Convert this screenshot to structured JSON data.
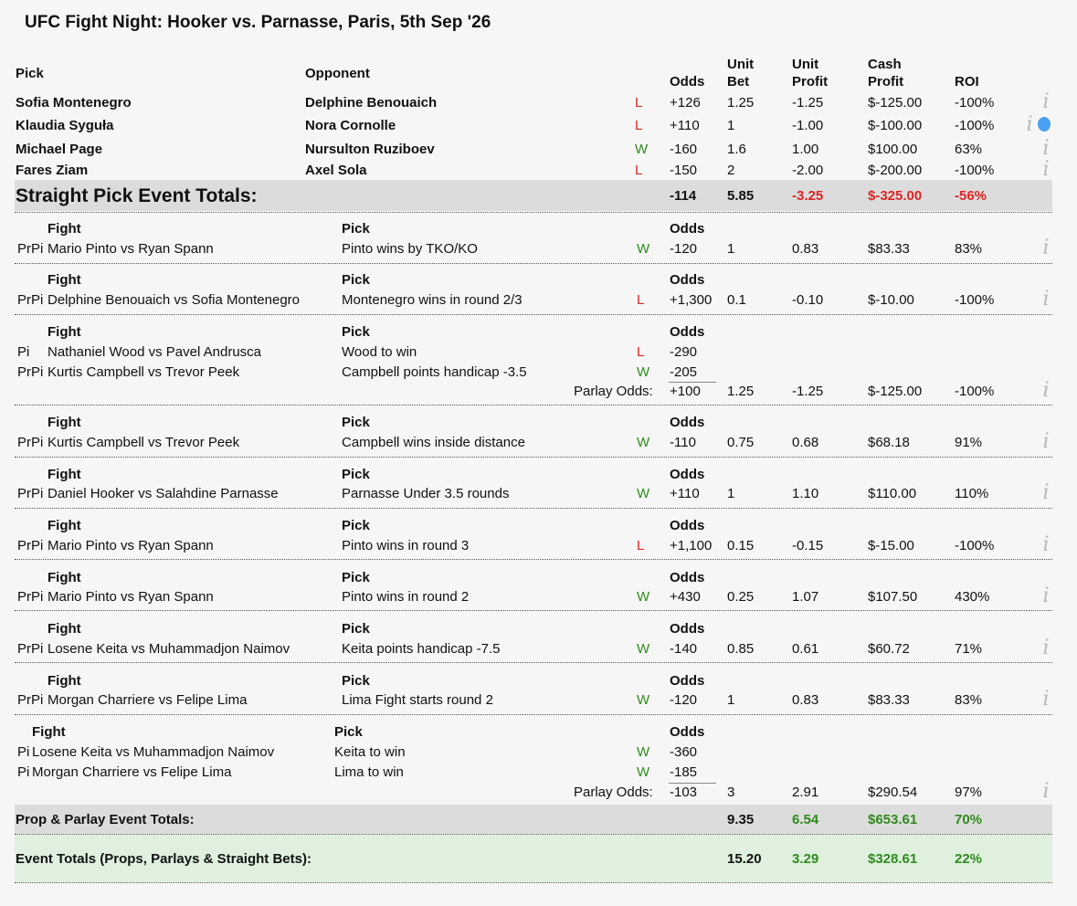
{
  "title": "UFC Fight Night: Hooker vs. Parnasse, Paris, 5th Sep '26",
  "headers": {
    "pick": "Pick",
    "opponent": "Opponent",
    "odds": "Odds",
    "unit": "Unit",
    "bet": "Bet",
    "profit": "Profit",
    "cash": "Cash",
    "roi": "ROI",
    "fight": "Fight",
    "prop_pick": "Pick"
  },
  "straight": [
    {
      "pick": "Sofia Montenegro",
      "opp": "Delphine Benouaich",
      "res": "L",
      "odds": "+126",
      "bet": "1.25",
      "up": "-1.25",
      "cp": "$-125.00",
      "roi": "-100%"
    },
    {
      "pick": "Klaudia Syguła",
      "opp": "Nora Cornolle",
      "res": "L",
      "odds": "+110",
      "bet": "1",
      "up": "-1.00",
      "cp": "$-100.00",
      "roi": "-100%"
    },
    {
      "pick": "Michael Page",
      "opp": "Nursulton Ruziboev",
      "res": "W",
      "odds": "-160",
      "bet": "1.6",
      "up": "1.00",
      "cp": "$100.00",
      "roi": "63%"
    },
    {
      "pick": "Fares Ziam",
      "opp": "Axel Sola",
      "res": "L",
      "odds": "-150",
      "bet": "2",
      "up": "-2.00",
      "cp": "$-200.00",
      "roi": "-100%"
    }
  ],
  "straight_totals": {
    "label": "Straight Pick Event Totals:",
    "odds": "-114",
    "bet": "5.85",
    "up": "-3.25",
    "cp": "$-325.00",
    "roi": "-56%"
  },
  "blocks": [
    {
      "legs": [
        {
          "tag": "PrPi",
          "fight": "Mario Pinto vs Ryan Spann",
          "pick": "Pinto wins by TKO/KO",
          "res": "W",
          "odds": "-120"
        }
      ],
      "bet": "1",
      "up": "0.83",
      "cp": "$83.33",
      "roi": "83%"
    },
    {
      "legs": [
        {
          "tag": "PrPi",
          "fight": "Delphine Benouaich vs Sofia Montenegro",
          "pick": "Montenegro wins in round 2/3",
          "res": "L",
          "odds": "+1,300"
        }
      ],
      "bet": "0.1",
      "up": "-0.10",
      "cp": "$-10.00",
      "roi": "-100%"
    },
    {
      "legs": [
        {
          "tag": "Pi",
          "fight": "Nathaniel Wood vs Pavel Andrusca",
          "pick": "Wood to win",
          "res": "L",
          "odds": "-290"
        },
        {
          "tag": "PrPi",
          "fight": "Kurtis Campbell vs Trevor Peek",
          "pick": "Campbell points handicap -3.5",
          "res": "W",
          "odds": "-205"
        }
      ],
      "parlay_label": "Parlay Odds:",
      "parlay_odds": "+100",
      "bet": "1.25",
      "up": "-1.25",
      "cp": "$-125.00",
      "roi": "-100%"
    },
    {
      "legs": [
        {
          "tag": "PrPi",
          "fight": "Kurtis Campbell vs Trevor Peek",
          "pick": "Campbell wins inside distance",
          "res": "W",
          "odds": "-110"
        }
      ],
      "bet": "0.75",
      "up": "0.68",
      "cp": "$68.18",
      "roi": "91%"
    },
    {
      "legs": [
        {
          "tag": "PrPi",
          "fight": "Daniel Hooker vs Salahdine Parnasse",
          "pick": "Parnasse Under 3.5 rounds",
          "res": "W",
          "odds": "+110"
        }
      ],
      "bet": "1",
      "up": "1.10",
      "cp": "$110.00",
      "roi": "110%"
    },
    {
      "legs": [
        {
          "tag": "PrPi",
          "fight": "Mario Pinto vs Ryan Spann",
          "pick": "Pinto wins in round 3",
          "res": "L",
          "odds": "+1,100"
        }
      ],
      "bet": "0.15",
      "up": "-0.15",
      "cp": "$-15.00",
      "roi": "-100%"
    },
    {
      "legs": [
        {
          "tag": "PrPi",
          "fight": "Mario Pinto vs Ryan Spann",
          "pick": "Pinto wins in round 2",
          "res": "W",
          "odds": "+430"
        }
      ],
      "bet": "0.25",
      "up": "1.07",
      "cp": "$107.50",
      "roi": "430%"
    },
    {
      "legs": [
        {
          "tag": "PrPi",
          "fight": "Losene Keita vs Muhammadjon Naimov",
          "pick": "Keita points handicap -7.5",
          "res": "W",
          "odds": "-140"
        }
      ],
      "bet": "0.85",
      "up": "0.61",
      "cp": "$60.72",
      "roi": "71%"
    },
    {
      "legs": [
        {
          "tag": "PrPi",
          "fight": "Morgan Charriere vs Felipe Lima",
          "pick": "Lima Fight starts round 2",
          "res": "W",
          "odds": "-120"
        }
      ],
      "bet": "1",
      "up": "0.83",
      "cp": "$83.33",
      "roi": "83%"
    },
    {
      "legs": [
        {
          "tag": "Pi",
          "fight": "Losene Keita vs Muhammadjon Naimov",
          "pick": "Keita to win",
          "res": "W",
          "odds": "-360"
        },
        {
          "tag": "Pi",
          "fight": "Morgan Charriere vs Felipe Lima",
          "pick": "Lima to win",
          "res": "W",
          "odds": "-185"
        }
      ],
      "parlay_label": "Parlay Odds:",
      "parlay_odds": "-103",
      "bet": "3",
      "up": "2.91",
      "cp": "$290.54",
      "roi": "97%"
    }
  ],
  "prop_totals": {
    "label": "Prop & Parlay Event Totals:",
    "bet": "9.35",
    "up": "6.54",
    "cp": "$653.61",
    "roi": "70%"
  },
  "event_totals": {
    "label": "Event Totals (Props, Parlays & Straight Bets):",
    "bet": "15.20",
    "up": "3.29",
    "cp": "$328.61",
    "roi": "22%"
  },
  "colors": {
    "win": "#2e8b1c",
    "loss": "#e02323",
    "totals_band": "#dcdcdc",
    "event_band": "#dff0df",
    "info_icon": "#b8b8b8",
    "info_active": "#4aa0f5"
  },
  "icons": {
    "info": "info-icon",
    "tooltip": "info-bubble-icon"
  }
}
